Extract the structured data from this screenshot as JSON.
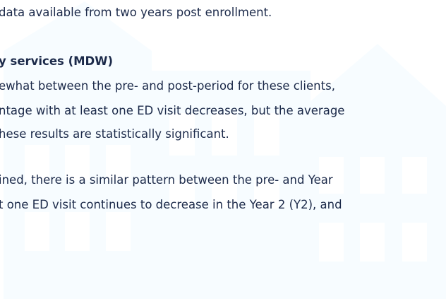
{
  "intro": "data available from two years post enrollment.",
  "section": {
    "heading": "y services (MDW)",
    "paragraph1": [
      "ewhat between the pre- and post-period for these clients,",
      "ntage with at least one ED visit decreases, but the average",
      "hese results are statistically significant."
    ],
    "paragraph2": [
      "ined, there is a similar pattern between the pre- and Year",
      "t one ED visit continues to decrease in the Year 2 (Y2), and"
    ]
  }
}
